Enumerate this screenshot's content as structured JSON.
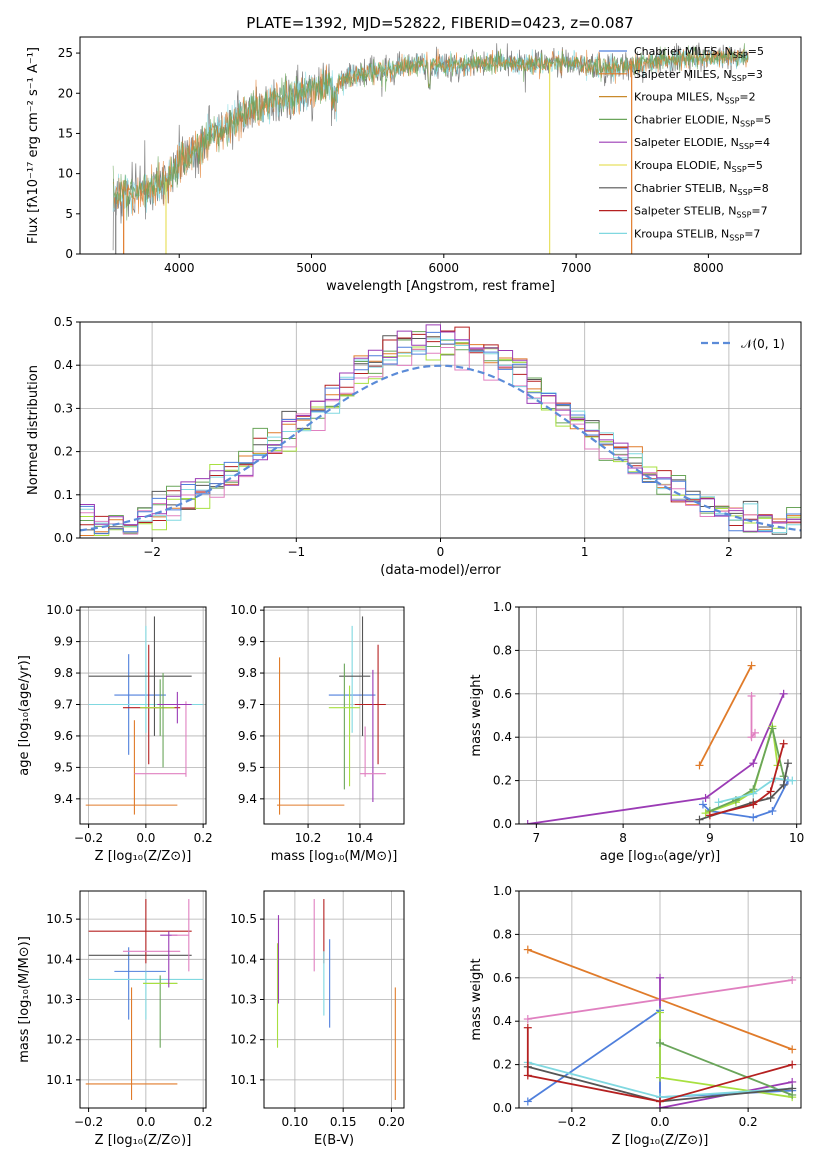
{
  "figure": {
    "title": "PLATE=1392, MJD=52822, FIBERID=0423, z=0.087"
  },
  "colors": {
    "Chabrier MILES": "#4f7fdc",
    "Salpeter MILES": "#e07b2a",
    "Kroupa MILES": "#c98a2c",
    "Chabrier ELODIE": "#6aa55a",
    "Salpeter ELODIE": "#9b3bb5",
    "Kroupa ELODIE": "#e8e060",
    "Chabrier STELIB": "#555555",
    "Salpeter STELIB": "#b52020",
    "Kroupa STELIB": "#80d8e0",
    "pink": "#e080c0",
    "lime": "#a8e040",
    "model_grey": "#808080"
  },
  "chart_data": [
    {
      "id": "spectrum",
      "type": "line",
      "xlabel": "wavelength [Angstrom, rest frame]",
      "ylabel": "Flux [fλ10⁻¹⁷ erg cm⁻² s⁻¹ A⁻¹]",
      "xlim": [
        3250,
        8700
      ],
      "ylim": [
        0,
        27
      ],
      "xticks": [
        "4000",
        "5000",
        "6000",
        "7000",
        "8000"
      ],
      "yticks": [
        "0",
        "5",
        "10",
        "15",
        "20",
        "25"
      ],
      "legend_position": "top-right",
      "legend": [
        {
          "label": "Chabrier MILES, N",
          "sub": "SSP",
          "n": "=5",
          "color": "#4f7fdc"
        },
        {
          "label": "Salpeter MILES, N",
          "sub": "SSP",
          "n": "=3",
          "color": "#e07b2a"
        },
        {
          "label": "Kroupa MILES, N",
          "sub": "SSP",
          "n": "=2",
          "color": "#c98a2c"
        },
        {
          "label": "Chabrier ELODIE, N",
          "sub": "SSP",
          "n": "=5",
          "color": "#6aa55a"
        },
        {
          "label": "Salpeter ELODIE, N",
          "sub": "SSP",
          "n": "=4",
          "color": "#9b3bb5"
        },
        {
          "label": "Kroupa ELODIE, N",
          "sub": "SSP",
          "n": "=5",
          "color": "#e8e060"
        },
        {
          "label": "Chabrier STELIB, N",
          "sub": "SSP",
          "n": "=8",
          "color": "#555555"
        },
        {
          "label": "Salpeter STELIB, N",
          "sub": "SSP",
          "n": "=7",
          "color": "#b52020"
        },
        {
          "label": "Kroupa STELIB, N",
          "sub": "SSP",
          "n": "=7",
          "color": "#80d8e0"
        }
      ],
      "continuum": [
        [
          3500,
          7
        ],
        [
          3700,
          8
        ],
        [
          3900,
          9
        ],
        [
          4000,
          11
        ],
        [
          4200,
          14
        ],
        [
          4400,
          16.5
        ],
        [
          4600,
          18.5
        ],
        [
          4800,
          19.5
        ],
        [
          5000,
          20.5
        ],
        [
          5200,
          21.5
        ],
        [
          5400,
          22.5
        ],
        [
          5600,
          23
        ],
        [
          5800,
          23.5
        ],
        [
          6000,
          23.5
        ],
        [
          6200,
          23.5
        ],
        [
          6400,
          24
        ],
        [
          6600,
          23.5
        ],
        [
          6800,
          23.8
        ],
        [
          7000,
          23.6
        ],
        [
          7200,
          23.2
        ],
        [
          7400,
          23.3
        ],
        [
          7600,
          24
        ],
        [
          7800,
          24.3
        ],
        [
          8000,
          24.5
        ],
        [
          8200,
          24.5
        ],
        [
          8300,
          24.4
        ]
      ],
      "drops": [
        {
          "x": 3520,
          "ymin": 0,
          "color": "#808080"
        },
        {
          "x": 3580,
          "ymin": 0,
          "color": "#e07b2a"
        },
        {
          "x": 3900,
          "ymin": 0,
          "color": "#e8e060"
        },
        {
          "x": 6800,
          "ymin": 0,
          "color": "#e8e060"
        },
        {
          "x": 7420,
          "ymin": 0,
          "color": "#e07b2a"
        }
      ]
    },
    {
      "id": "residuals",
      "type": "bar",
      "xlabel": "(data-model)/error",
      "ylabel": "Normed distribution",
      "xlim": [
        -2.5,
        2.5
      ],
      "ylim": [
        0,
        0.5
      ],
      "xticks": [
        "−2",
        "−1",
        "0",
        "1",
        "2"
      ],
      "yticks": [
        "0.0",
        "0.1",
        "0.2",
        "0.3",
        "0.4",
        "0.5"
      ],
      "legend_position": "top-right",
      "gaussian_label": "𝒩(0, 1)",
      "gaussian_color": "#5b8bd8",
      "bin_width": 0.1
    },
    {
      "id": "age_vs_Z",
      "type": "scatter",
      "xlabel": "Z [log₁₀(Z/Z⊙)]",
      "ylabel": "age  [log₁₀(age/yr)]",
      "xlim": [
        -0.23,
        0.21
      ],
      "ylim": [
        9.32,
        10.01
      ],
      "xticks": [
        "−0.2",
        "0.0",
        "0.2"
      ],
      "yticks": [
        "9.4",
        "9.5",
        "9.6",
        "9.7",
        "9.8",
        "9.9",
        "10.0"
      ],
      "points": [
        {
          "x": -0.06,
          "y": 9.7,
          "xerr": 0.0,
          "yerr": 0.16,
          "color": "#4f7fdc"
        },
        {
          "x": -0.02,
          "y": 9.73,
          "xerr": 0.09,
          "yerr": 0.0,
          "color": "#4f7fdc"
        },
        {
          "x": -0.05,
          "y": 9.38,
          "xerr": 0.16,
          "yerr": 0.0,
          "color": "#e07b2a"
        },
        {
          "x": -0.04,
          "y": 9.5,
          "xerr": 0.0,
          "yerr": 0.15,
          "color": "#e07b2a"
        },
        {
          "x": 0.0,
          "y": 9.78,
          "xerr": 0.0,
          "yerr": 0.17,
          "color": "#80d8e0"
        },
        {
          "x": 0.0,
          "y": 9.7,
          "xerr": 0.2,
          "yerr": 0.0,
          "color": "#80d8e0"
        },
        {
          "x": 0.03,
          "y": 9.79,
          "xerr": 0.0,
          "yerr": 0.19,
          "color": "#555555"
        },
        {
          "x": -0.02,
          "y": 9.79,
          "xerr": 0.18,
          "yerr": 0.0,
          "color": "#555555"
        },
        {
          "x": 0.02,
          "y": 9.69,
          "xerr": 0.1,
          "yerr": 0.0,
          "color": "#b52020"
        },
        {
          "x": 0.01,
          "y": 9.7,
          "xerr": 0.0,
          "yerr": 0.19,
          "color": "#b52020"
        },
        {
          "x": 0.05,
          "y": 9.69,
          "xerr": 0.0,
          "yerr": 0.09,
          "color": "#6aa55a"
        },
        {
          "x": 0.04,
          "y": 9.69,
          "xerr": 0.06,
          "yerr": 0.0,
          "color": "#a8e040"
        },
        {
          "x": 0.06,
          "y": 9.65,
          "xerr": 0.0,
          "yerr": 0.15,
          "color": "#6aa55a"
        },
        {
          "x": 0.14,
          "y": 9.59,
          "xerr": 0.0,
          "yerr": 0.12,
          "color": "#e080c0"
        },
        {
          "x": 0.05,
          "y": 9.48,
          "xerr": 0.09,
          "yerr": 0.0,
          "color": "#e080c0"
        },
        {
          "x": 0.1,
          "y": 9.7,
          "xerr": 0.06,
          "yerr": 0.0,
          "color": "#9b3bb5"
        },
        {
          "x": 0.11,
          "y": 9.69,
          "xerr": 0.0,
          "yerr": 0.05,
          "color": "#9b3bb5"
        }
      ]
    },
    {
      "id": "age_vs_mass",
      "type": "scatter",
      "xlabel": "mass [log₁₀(M/M⊙)]",
      "ylabel": "",
      "xlim": [
        10.03,
        10.57
      ],
      "ylim": [
        9.32,
        10.01
      ],
      "xticks": [
        "10.2",
        "10.4"
      ],
      "yticks": [
        "9.4",
        "9.5",
        "9.6",
        "9.7",
        "9.8",
        "9.9",
        "10.0"
      ],
      "points": [
        {
          "x": 10.09,
          "y": 9.6,
          "xerr": 0.0,
          "yerr": 0.25,
          "color": "#e07b2a"
        },
        {
          "x": 10.21,
          "y": 9.38,
          "xerr": 0.13,
          "yerr": 0.0,
          "color": "#e07b2a"
        },
        {
          "x": 10.37,
          "y": 9.73,
          "xerr": 0.09,
          "yerr": 0.0,
          "color": "#4f7fdc"
        },
        {
          "x": 10.37,
          "y": 9.78,
          "xerr": 0.0,
          "yerr": 0.17,
          "color": "#80d8e0"
        },
        {
          "x": 10.41,
          "y": 9.79,
          "xerr": 0.0,
          "yerr": 0.19,
          "color": "#555555"
        },
        {
          "x": 10.38,
          "y": 9.79,
          "xerr": 0.06,
          "yerr": 0.0,
          "color": "#555555"
        },
        {
          "x": 10.34,
          "y": 9.63,
          "xerr": 0.0,
          "yerr": 0.2,
          "color": "#6aa55a"
        },
        {
          "x": 10.34,
          "y": 9.69,
          "xerr": 0.06,
          "yerr": 0.0,
          "color": "#a8e040"
        },
        {
          "x": 10.36,
          "y": 9.6,
          "xerr": 0.0,
          "yerr": 0.16,
          "color": "#a8e040"
        },
        {
          "x": 10.44,
          "y": 9.7,
          "xerr": 0.06,
          "yerr": 0.0,
          "color": "#b52020"
        },
        {
          "x": 10.47,
          "y": 9.7,
          "xerr": 0.0,
          "yerr": 0.19,
          "color": "#b52020"
        },
        {
          "x": 10.45,
          "y": 9.6,
          "xerr": 0.0,
          "yerr": 0.21,
          "color": "#9b3bb5"
        },
        {
          "x": 10.45,
          "y": 9.48,
          "xerr": 0.05,
          "yerr": 0.0,
          "color": "#e080c0"
        },
        {
          "x": 10.42,
          "y": 9.55,
          "xerr": 0.0,
          "yerr": 0.08,
          "color": "#e080c0"
        }
      ]
    },
    {
      "id": "massweight_vs_age",
      "type": "line",
      "xlabel": "age  [log₁₀(age/yr)]",
      "ylabel": "mass weight",
      "xlim": [
        6.8,
        10.05
      ],
      "ylim": [
        0,
        1
      ],
      "xticks": [
        "7",
        "8",
        "9",
        "10"
      ],
      "yticks": [
        "0.0",
        "0.2",
        "0.4",
        "0.6",
        "0.8",
        "1.0"
      ],
      "series": [
        {
          "color": "#9b3bb5",
          "x": [
            6.9,
            8.95,
            9.5,
            9.85
          ],
          "y": [
            0.0,
            0.12,
            0.28,
            0.6
          ]
        },
        {
          "color": "#e07b2a",
          "x": [
            8.88,
            9.48
          ],
          "y": [
            0.27,
            0.73
          ]
        },
        {
          "color": "#e080c0",
          "x": [
            9.48,
            9.48,
            9.52
          ],
          "y": [
            0.59,
            0.4,
            0.42
          ]
        },
        {
          "color": "#4f7fdc",
          "x": [
            8.92,
            9.0,
            9.5,
            9.72,
            9.9
          ],
          "y": [
            0.09,
            0.06,
            0.03,
            0.06,
            0.2
          ]
        },
        {
          "color": "#a8e040",
          "x": [
            8.95,
            9.3,
            9.5,
            9.72,
            9.78
          ],
          "y": [
            0.05,
            0.1,
            0.15,
            0.45,
            0.27
          ]
        },
        {
          "color": "#6aa55a",
          "x": [
            9.0,
            9.3,
            9.5,
            9.72,
            9.85
          ],
          "y": [
            0.06,
            0.11,
            0.16,
            0.44,
            0.22
          ]
        },
        {
          "color": "#80d8e0",
          "x": [
            9.1,
            9.5,
            9.75,
            9.95
          ],
          "y": [
            0.1,
            0.14,
            0.21,
            0.2
          ]
        },
        {
          "color": "#555555",
          "x": [
            8.88,
            9.5,
            9.7,
            9.85,
            9.9
          ],
          "y": [
            0.02,
            0.1,
            0.12,
            0.18,
            0.28
          ]
        },
        {
          "color": "#b52020",
          "x": [
            9.0,
            9.5,
            9.7,
            9.85
          ],
          "y": [
            0.04,
            0.09,
            0.15,
            0.37
          ]
        }
      ]
    },
    {
      "id": "mass_vs_Z",
      "type": "scatter",
      "xlabel": "Z [log₁₀(Z/Z⊙)]",
      "ylabel": "mass [log₁₀(M/M⊙)]",
      "xlim": [
        -0.23,
        0.21
      ],
      "ylim": [
        10.03,
        10.57
      ],
      "xticks": [
        "−0.2",
        "0.0",
        "0.2"
      ],
      "yticks": [
        "10.1",
        "10.2",
        "10.3",
        "10.4",
        "10.5"
      ],
      "points": [
        {
          "x": -0.05,
          "y": 10.09,
          "xerr": 0.16,
          "yerr": 0.0,
          "color": "#e07b2a"
        },
        {
          "x": -0.05,
          "y": 10.19,
          "xerr": 0.0,
          "yerr": 0.14,
          "color": "#e07b2a"
        },
        {
          "x": -0.06,
          "y": 10.34,
          "xerr": 0.0,
          "yerr": 0.09,
          "color": "#4f7fdc"
        },
        {
          "x": -0.02,
          "y": 10.37,
          "xerr": 0.09,
          "yerr": 0.0,
          "color": "#4f7fdc"
        },
        {
          "x": -0.02,
          "y": 10.41,
          "xerr": 0.18,
          "yerr": 0.0,
          "color": "#555555"
        },
        {
          "x": 0.0,
          "y": 10.35,
          "xerr": 0.2,
          "yerr": 0.0,
          "color": "#80d8e0"
        },
        {
          "x": 0.0,
          "y": 10.31,
          "xerr": 0.0,
          "yerr": 0.06,
          "color": "#80d8e0"
        },
        {
          "x": 0.0,
          "y": 10.47,
          "xerr": 0.0,
          "yerr": 0.08,
          "color": "#b52020"
        },
        {
          "x": -0.02,
          "y": 10.47,
          "xerr": 0.18,
          "yerr": 0.0,
          "color": "#b52020"
        },
        {
          "x": 0.02,
          "y": 10.42,
          "xerr": 0.1,
          "yerr": 0.0,
          "color": "#e080c0"
        },
        {
          "x": 0.05,
          "y": 10.34,
          "xerr": 0.06,
          "yerr": 0.0,
          "color": "#6aa55a"
        },
        {
          "x": 0.05,
          "y": 10.27,
          "xerr": 0.0,
          "yerr": 0.09,
          "color": "#6aa55a"
        },
        {
          "x": 0.05,
          "y": 10.34,
          "xerr": 0.06,
          "yerr": 0.0,
          "color": "#a8e040"
        },
        {
          "x": 0.08,
          "y": 10.46,
          "xerr": 0.03,
          "yerr": 0.0,
          "color": "#9b3bb5"
        },
        {
          "x": 0.08,
          "y": 10.4,
          "xerr": 0.0,
          "yerr": 0.07,
          "color": "#9b3bb5"
        },
        {
          "x": 0.15,
          "y": 10.46,
          "xerr": 0.0,
          "yerr": 0.09,
          "color": "#e080c0"
        },
        {
          "x": 0.12,
          "y": 10.46,
          "xerr": 0.03,
          "yerr": 0.0,
          "color": "#e080c0"
        }
      ]
    },
    {
      "id": "mass_vs_EBV",
      "type": "scatter",
      "xlabel": "E(B-V)",
      "ylabel": "",
      "xlim": [
        0.068,
        0.213
      ],
      "ylim": [
        10.03,
        10.57
      ],
      "xticks": [
        "0.10",
        "0.15",
        "0.20"
      ],
      "yticks": [
        "10.1",
        "10.2",
        "10.3",
        "10.4",
        "10.5"
      ],
      "points": [
        {
          "x": 0.082,
          "y": 10.31,
          "xerr": 0.0,
          "yerr": 0.13,
          "color": "#a8e040"
        },
        {
          "x": 0.083,
          "y": 10.4,
          "xerr": 0.0,
          "yerr": 0.11,
          "color": "#9b3bb5"
        },
        {
          "x": 0.12,
          "y": 10.46,
          "xerr": 0.0,
          "yerr": 0.09,
          "color": "#e080c0"
        },
        {
          "x": 0.13,
          "y": 10.47,
          "xerr": 0.0,
          "yerr": 0.08,
          "color": "#b52020"
        },
        {
          "x": 0.13,
          "y": 10.34,
          "xerr": 0.0,
          "yerr": 0.08,
          "color": "#80d8e0"
        },
        {
          "x": 0.136,
          "y": 10.34,
          "xerr": 0.0,
          "yerr": 0.11,
          "color": "#4f7fdc"
        },
        {
          "x": 0.204,
          "y": 10.19,
          "xerr": 0.0,
          "yerr": 0.14,
          "color": "#e07b2a"
        }
      ]
    },
    {
      "id": "massweight_vs_Z",
      "type": "line",
      "xlabel": "Z [log₁₀(Z/Z⊙)]",
      "ylabel": "mass weight",
      "xlim": [
        -0.32,
        0.32
      ],
      "ylim": [
        0,
        1
      ],
      "xticks": [
        "−0.2",
        "0.0",
        "0.2"
      ],
      "yticks": [
        "0.0",
        "0.2",
        "0.4",
        "0.6",
        "0.8",
        "1.0"
      ],
      "series": [
        {
          "color": "#e07b2a",
          "x": [
            -0.3,
            0.3
          ],
          "y": [
            0.73,
            0.27
          ]
        },
        {
          "color": "#e080c0",
          "x": [
            -0.3,
            0.0,
            0.3
          ],
          "y": [
            0.41,
            0.5,
            0.59
          ]
        },
        {
          "color": "#9b3bb5",
          "x": [
            0.0,
            0.0,
            0.3
          ],
          "y": [
            0.6,
            0.0,
            0.12
          ]
        },
        {
          "color": "#4f7fdc",
          "x": [
            -0.3,
            0.0,
            0.0,
            0.3
          ],
          "y": [
            0.03,
            0.45,
            0.05,
            0.08
          ]
        },
        {
          "color": "#a8e040",
          "x": [
            0.0,
            0.0,
            0.3
          ],
          "y": [
            0.44,
            0.14,
            0.05
          ]
        },
        {
          "color": "#6aa55a",
          "x": [
            0.0,
            0.3
          ],
          "y": [
            0.3,
            0.06
          ]
        },
        {
          "color": "#80d8e0",
          "x": [
            -0.3,
            0.0,
            0.3
          ],
          "y": [
            0.21,
            0.05,
            0.09
          ]
        },
        {
          "color": "#555555",
          "x": [
            -0.3,
            0.0,
            0.3
          ],
          "y": [
            0.19,
            0.03,
            0.09
          ]
        },
        {
          "color": "#b52020",
          "x": [
            -0.3,
            -0.3,
            0.0,
            0.3
          ],
          "y": [
            0.37,
            0.15,
            0.03,
            0.2
          ]
        }
      ]
    }
  ]
}
